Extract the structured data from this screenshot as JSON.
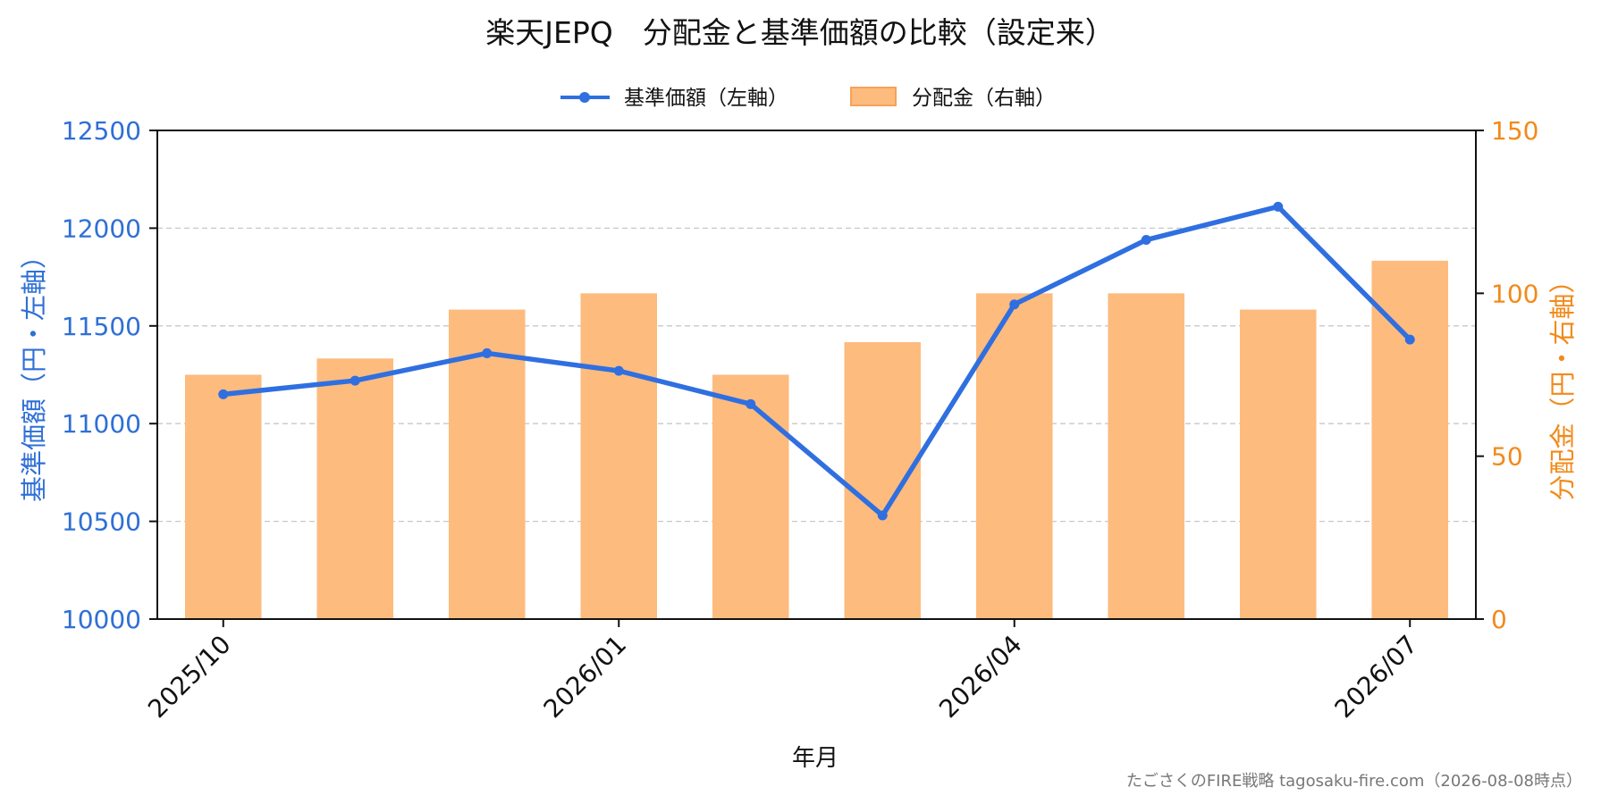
{
  "chart_data": {
    "type": "bar+line",
    "title": "楽天JEPQ　分配金と基準価額の比較（設定来）",
    "xlabel": "年月",
    "ylabel_left": "基準価額（円・左軸）",
    "ylabel_right": "分配金（円・右軸）",
    "x_ticks": [
      "2025/10",
      "2026/01",
      "2026/04",
      "2026/07"
    ],
    "x": [
      "2025/10",
      "2025/11",
      "2025/12",
      "2026/01",
      "2026/02",
      "2026/03",
      "2026/04",
      "2026/05",
      "2026/06",
      "2026/07"
    ],
    "ylim_left": [
      10000,
      12500
    ],
    "yticks_left": [
      "10000",
      "10500",
      "11000",
      "11500",
      "12000",
      "12500"
    ],
    "ylim_right": [
      0,
      150
    ],
    "yticks_right": [
      "0",
      "50",
      "100",
      "150"
    ],
    "grid": true,
    "legend_position": "top-center",
    "series": [
      {
        "name": "基準価額（左軸）",
        "type": "line",
        "axis": "left",
        "color": "#2f6fe0",
        "values": [
          11150,
          11220,
          11360,
          11270,
          11100,
          10530,
          11610,
          11940,
          12110,
          11430
        ]
      },
      {
        "name": "分配金（右軸）",
        "type": "bar",
        "axis": "right",
        "color": "#fdbb7e",
        "values": [
          75,
          80,
          95,
          100,
          75,
          85,
          100,
          100,
          95,
          110
        ]
      }
    ],
    "footer": "たごさくのFIRE戦略 tagosaku-fire.com（2026-08-08時点）",
    "colors": {
      "left_axis": "#2f6fd6",
      "right_axis": "#f28a1a",
      "bar_edge": "#f5a25a",
      "grid": "#c8c8c8"
    }
  }
}
